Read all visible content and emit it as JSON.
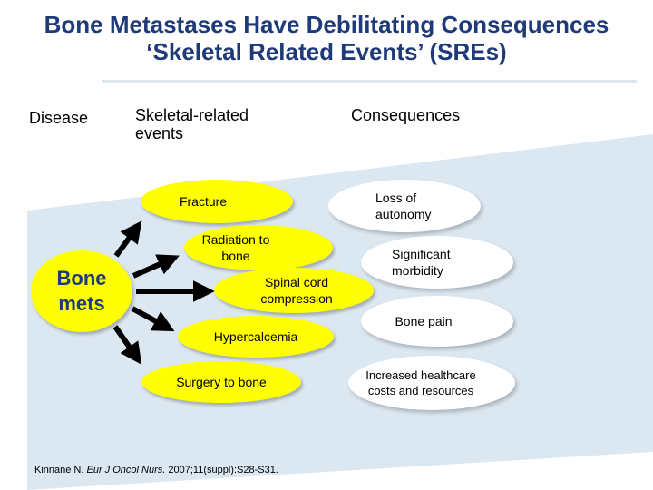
{
  "title": {
    "line1": "Bone Metastases Have Debilitating Consequences",
    "line2": "‘Skeletal Related Events’ (SREs)"
  },
  "columns": {
    "disease": "Disease",
    "sre_line1": "Skeletal-related",
    "sre_line2": "events",
    "consequences": "Consequences"
  },
  "source": "Bone mets",
  "events": [
    "Fracture",
    "Radiation to bone",
    "Spinal cord compression",
    "Hypercalcemia",
    "Surgery to bone"
  ],
  "consequences": [
    "Loss of autonomy",
    "Significant morbidity",
    "Bone pain",
    "Increased healthcare costs and resources"
  ],
  "citation": {
    "author": "Kinnane N.",
    "journal": "Eur J Oncol Nurs.",
    "details": "2007;11(suppl):S28-S31."
  },
  "colors": {
    "title": "#1f3a78",
    "event_fill": "#ffff00",
    "band": "#dbe7f1"
  }
}
